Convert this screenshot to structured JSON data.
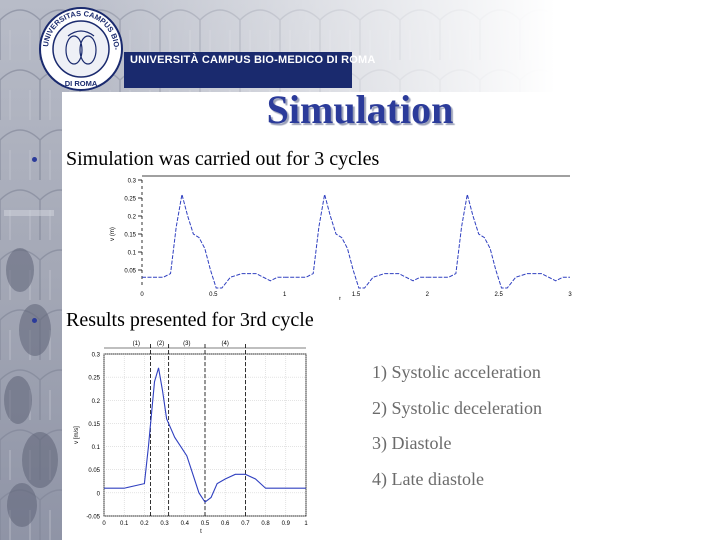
{
  "header": {
    "university_name": "UNIVERSITÀ CAMPUS BIO-MEDICO DI ROMA",
    "logo_ring_text": "UNIVERSITAS CAMPUS BIO-MEDICO",
    "logo_bottom_text": "DI ROMA"
  },
  "title": "Simulation",
  "bullets": [
    "Simulation was carried out for 3 cycles",
    "Results presented for 3rd cycle"
  ],
  "phases": [
    "1)  Systolic acceleration",
    "2)  Systolic deceleration",
    "3)  Diastole",
    "4)  Late diastole"
  ],
  "colors": {
    "title": "#2b3b9a",
    "banner": "#1a2a6e",
    "plot_line": "#3040c0"
  },
  "chart_data": [
    {
      "type": "line",
      "title": "",
      "xlabel": "t",
      "ylabel": "v (m)",
      "xlim": [
        0,
        3
      ],
      "ylim": [
        0,
        0.3
      ],
      "x_ticks": [
        "0",
        "0.5",
        "1",
        "1.5",
        "2",
        "2.5",
        "3"
      ],
      "y_ticks": [
        "0.05",
        "0.1",
        "0.15",
        "0.2",
        "0.25",
        "0.3"
      ],
      "series": [
        {
          "x": [
            0,
            0.15,
            0.2,
            0.24,
            0.28,
            0.32,
            0.36,
            0.4,
            0.44,
            0.48,
            0.52,
            0.56,
            0.62,
            0.7,
            0.8,
            0.9,
            0.95,
            1.0
          ],
          "values": [
            0.03,
            0.03,
            0.04,
            0.17,
            0.26,
            0.2,
            0.15,
            0.14,
            0.11,
            0.05,
            0.0,
            0.0,
            0.03,
            0.04,
            0.04,
            0.02,
            0.03,
            0.03
          ]
        }
      ],
      "cycles": 3
    },
    {
      "type": "line",
      "title": "",
      "xlabel": "t",
      "ylabel": "v [m/s]",
      "xlim": [
        0,
        1
      ],
      "ylim": [
        -0.05,
        0.3
      ],
      "x_ticks": [
        "0",
        "0.1",
        "0.2",
        "0.3",
        "0.4",
        "0.5",
        "0.6",
        "0.7",
        "0.8",
        "0.9",
        "1"
      ],
      "y_ticks": [
        "-0.05",
        "0",
        "0.05",
        "0.1",
        "0.15",
        "0.2",
        "0.25",
        "0.3"
      ],
      "grid": true,
      "phase_labels": [
        "(1)",
        "(2)",
        "(3)",
        "(4)"
      ],
      "phase_boundaries": [
        0.23,
        0.32,
        0.5,
        0.7
      ],
      "series": [
        {
          "x": [
            0,
            0.1,
            0.2,
            0.22,
            0.25,
            0.27,
            0.29,
            0.31,
            0.33,
            0.35,
            0.38,
            0.41,
            0.44,
            0.47,
            0.5,
            0.53,
            0.56,
            0.6,
            0.65,
            0.7,
            0.75,
            0.8,
            0.85,
            0.9,
            1.0
          ],
          "values": [
            0.01,
            0.01,
            0.02,
            0.1,
            0.24,
            0.27,
            0.22,
            0.16,
            0.14,
            0.12,
            0.1,
            0.08,
            0.04,
            0.0,
            -0.02,
            -0.01,
            0.02,
            0.03,
            0.04,
            0.04,
            0.03,
            0.01,
            0.01,
            0.01,
            0.01
          ]
        }
      ]
    }
  ]
}
